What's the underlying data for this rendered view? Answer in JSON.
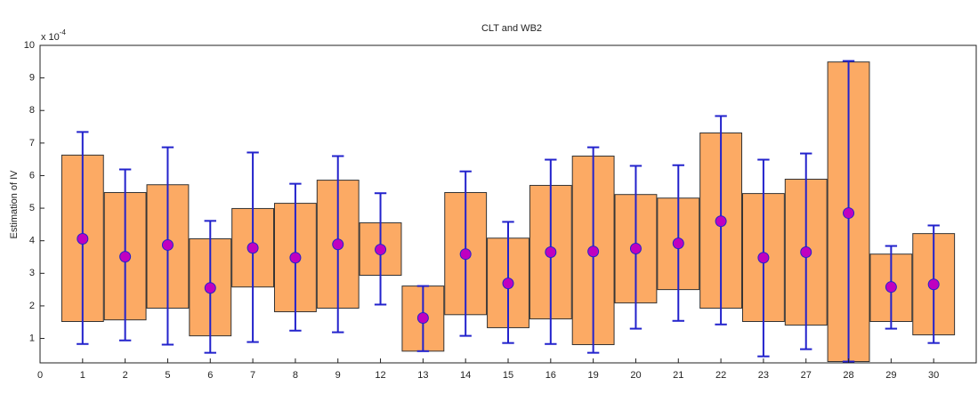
{
  "chart_data": {
    "type": "interval",
    "title": "CLT and WB2",
    "y_label": "Estimation of IV",
    "y_multiplier": {
      "base": "x 10",
      "exponent": "-4"
    },
    "xlim": [
      0,
      22
    ],
    "xticks": [
      0,
      1,
      2,
      {
        "value": 3,
        "label": "5"
      },
      {
        "value": 4,
        "label": "6"
      },
      {
        "value": 5,
        "label": "7"
      },
      {
        "value": 6,
        "label": "8"
      },
      {
        "value": 7,
        "label": "9"
      },
      {
        "value": 8,
        "label": "12"
      },
      {
        "value": 9,
        "label": "13"
      },
      {
        "value": 10,
        "label": "14"
      },
      {
        "value": 11,
        "label": "15"
      },
      {
        "value": 12,
        "label": "16"
      },
      {
        "value": 13,
        "label": "19"
      },
      {
        "value": 14,
        "label": "20"
      },
      {
        "value": 15,
        "label": "21"
      },
      {
        "value": 16,
        "label": "22"
      },
      {
        "value": 17,
        "label": "23"
      },
      {
        "value": 18,
        "label": "27"
      },
      {
        "value": 19,
        "label": "28"
      },
      {
        "value": 20,
        "label": "29"
      },
      {
        "value": 21,
        "label": "30"
      }
    ],
    "ylim": [
      0.25,
      10
    ],
    "yticks": [
      1,
      2,
      3,
      4,
      5,
      6,
      7,
      8,
      9,
      10
    ],
    "x": [
      1,
      2,
      3,
      4,
      5,
      6,
      7,
      8,
      9,
      10,
      11,
      12,
      13,
      14,
      15,
      16,
      17,
      18,
      19,
      20,
      21
    ],
    "values": [
      4.06,
      3.51,
      3.87,
      2.55,
      3.78,
      3.48,
      3.89,
      3.73,
      1.63,
      3.59,
      2.69,
      3.65,
      3.67,
      3.76,
      3.92,
      4.6,
      3.48,
      3.65,
      4.85,
      2.58,
      2.66
    ],
    "box_lower": [
      1.52,
      1.57,
      1.93,
      1.08,
      2.58,
      1.82,
      1.93,
      2.94,
      0.61,
      1.73,
      1.33,
      1.6,
      0.81,
      2.09,
      2.5,
      1.93,
      1.52,
      1.41,
      0.29,
      1.52,
      1.11
    ],
    "box_upper": [
      6.63,
      5.48,
      5.72,
      4.06,
      4.99,
      5.15,
      5.86,
      4.55,
      2.61,
      5.48,
      4.08,
      5.7,
      6.6,
      5.42,
      5.31,
      7.31,
      5.45,
      5.89,
      9.49,
      3.59,
      4.22
    ],
    "error_lower": [
      0.83,
      0.94,
      0.81,
      0.56,
      0.89,
      1.24,
      1.19,
      2.04,
      0.61,
      1.08,
      0.86,
      0.83,
      0.56,
      1.3,
      1.54,
      1.43,
      0.45,
      0.67,
      0.29,
      1.3,
      0.86
    ],
    "error_upper": [
      7.34,
      6.19,
      6.87,
      4.61,
      6.71,
      5.75,
      6.6,
      5.46,
      2.61,
      6.13,
      4.58,
      6.49,
      6.87,
      6.3,
      6.32,
      7.83,
      6.49,
      6.68,
      9.52,
      3.84,
      4.47
    ],
    "box_color": "#fcaa64",
    "error_color": "#2222cc",
    "point_color": "#c000c0"
  }
}
